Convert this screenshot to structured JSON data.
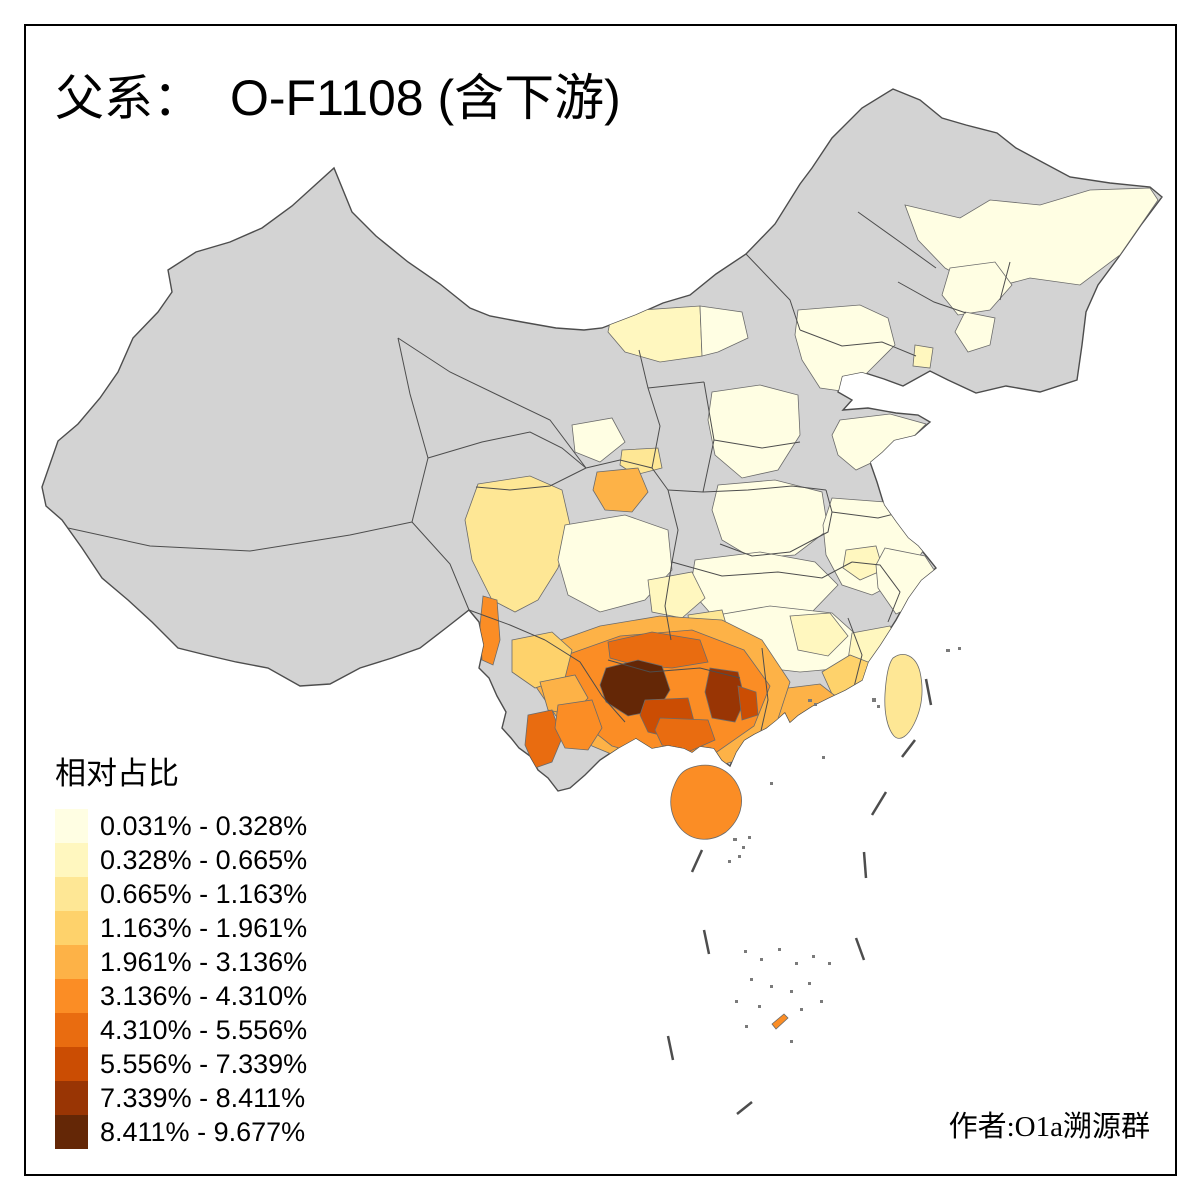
{
  "title": {
    "prefix": "父系：",
    "name": "O-F1108 (含下游)"
  },
  "legend": {
    "title": "相对占比",
    "items": [
      {
        "label": "0.031% - 0.328%",
        "color": "#FFFEE3"
      },
      {
        "label": "0.328% - 0.665%",
        "color": "#FFF7BF"
      },
      {
        "label": "0.665% - 1.163%",
        "color": "#FEE795"
      },
      {
        "label": "1.163% - 1.961%",
        "color": "#FED26B"
      },
      {
        "label": "1.961% - 3.136%",
        "color": "#FDB247"
      },
      {
        "label": "3.136% - 4.310%",
        "color": "#FB8D25"
      },
      {
        "label": "4.310% - 5.556%",
        "color": "#E96C10"
      },
      {
        "label": "5.556% - 7.339%",
        "color": "#CB4D03"
      },
      {
        "label": "7.339% - 8.411%",
        "color": "#993504"
      },
      {
        "label": "8.411% - 9.677%",
        "color": "#642706"
      }
    ]
  },
  "map": {
    "background": "#FFFFFF",
    "no_data_color": "#D3D3D3",
    "boundary_color": "#4D4D4D",
    "regions": [
      {
        "name": "inner-mongolia-band-west",
        "class": 2
      },
      {
        "name": "inner-mongolia-band-east",
        "class": 1
      },
      {
        "name": "heilongjiang-northeast",
        "class": 1
      },
      {
        "name": "heilongjiang-south",
        "class": 1
      },
      {
        "name": "jilin-east",
        "class": 1
      },
      {
        "name": "liaoning-west",
        "class": 1
      },
      {
        "name": "liaoning-city",
        "class": 2
      },
      {
        "name": "beijing-hebei",
        "class": 1
      },
      {
        "name": "shanxi",
        "class": 1
      },
      {
        "name": "shandong",
        "class": 1
      },
      {
        "name": "henan",
        "class": 1
      },
      {
        "name": "jiangsu-anhui",
        "class": 1
      },
      {
        "name": "anhui-patch",
        "class": 2
      },
      {
        "name": "hubei",
        "class": 1
      },
      {
        "name": "gansu-patch",
        "class": 1
      },
      {
        "name": "shaanxi-small",
        "class": 3
      },
      {
        "name": "guanzhong-orange",
        "class": 5
      },
      {
        "name": "west-sichuan",
        "class": 3
      },
      {
        "name": "sichuan-basin",
        "class": 1
      },
      {
        "name": "chongqing",
        "class": 2
      },
      {
        "name": "hunan-jiangxi",
        "class": 1
      },
      {
        "name": "hunan-west",
        "class": 3
      },
      {
        "name": "jiangxi-patch",
        "class": 2
      },
      {
        "name": "zhejiang-patch",
        "class": 1
      },
      {
        "name": "fujian-patch",
        "class": 2
      },
      {
        "name": "fujian-coast",
        "class": 4
      },
      {
        "name": "guangdong-mid",
        "class": 5
      },
      {
        "name": "south-ring",
        "class": 5
      },
      {
        "name": "south-core",
        "class": 6
      },
      {
        "name": "north-guizhou-band",
        "class": 7
      },
      {
        "name": "west-guizhou-dark",
        "class": 10
      },
      {
        "name": "central-guangxi-dark",
        "class": 9
      },
      {
        "name": "nanning-blob",
        "class": 8
      },
      {
        "name": "guangxi-east-blob",
        "class": 8
      },
      {
        "name": "guangxi-south",
        "class": 7
      },
      {
        "name": "yunnan-west-strip",
        "class": 6
      },
      {
        "name": "yunnan-center",
        "class": 4
      },
      {
        "name": "yunnan-kunming",
        "class": 5
      },
      {
        "name": "xishuangbanna",
        "class": 7
      },
      {
        "name": "honghe",
        "class": 6
      },
      {
        "name": "spratly-islet",
        "class": 6
      },
      {
        "name": "hainan",
        "class": 6
      },
      {
        "name": "taiwan",
        "class": 3
      }
    ]
  },
  "attribution": "作者:O1a溯源群"
}
